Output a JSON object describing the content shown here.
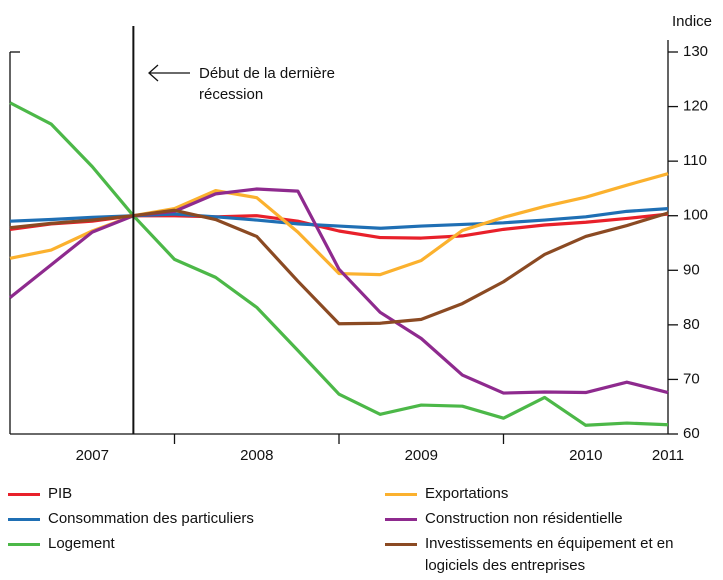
{
  "chart_data": {
    "type": "line",
    "unit_label": "Indice",
    "annotation": {
      "text": "Début de la dernière récession",
      "x": 2007.75
    },
    "x": [
      2007,
      2007.25,
      2007.5,
      2007.75,
      2008,
      2008.25,
      2008.5,
      2008.75,
      2009,
      2009.25,
      2009.5,
      2009.75,
      2010,
      2010.25,
      2010.5,
      2010.75,
      2011
    ],
    "xlim": [
      2007,
      2011
    ],
    "xticks": [
      {
        "value": 2007.5,
        "label": "2007"
      },
      {
        "value": 2008.5,
        "label": "2008"
      },
      {
        "value": 2009.5,
        "label": "2009"
      },
      {
        "value": 2010.5,
        "label": "2010"
      },
      {
        "value": 2011,
        "label": "2011"
      }
    ],
    "ylim": [
      60,
      130
    ],
    "yticks": [
      60,
      70,
      80,
      90,
      100,
      110,
      120,
      130
    ],
    "series": [
      {
        "name": "PIB",
        "color": "#e8202a",
        "values": [
          97.5,
          98.5,
          99,
          100,
          100,
          99.8,
          100,
          99,
          97.2,
          96,
          95.9,
          96.3,
          97.5,
          98.3,
          98.8,
          99.5,
          100.3
        ]
      },
      {
        "name": "Consommation des particuliers",
        "color": "#1f6fb4",
        "values": [
          99,
          99.3,
          99.7,
          100,
          100.3,
          99.8,
          99.2,
          98.5,
          98.1,
          97.7,
          98.1,
          98.4,
          98.7,
          99.2,
          99.8,
          100.8,
          101.3
        ]
      },
      {
        "name": "Logement",
        "color": "#4cb848",
        "values": [
          120.7,
          116.8,
          109,
          100,
          92,
          88.7,
          83.2,
          75.3,
          67.3,
          63.6,
          65.3,
          65.1,
          62.9,
          66.7,
          61.6,
          62,
          61.7
        ]
      },
      {
        "name": "Exportations",
        "color": "#fbb12e",
        "values": [
          92.2,
          93.7,
          97.2,
          100,
          101.3,
          104.6,
          103.3,
          97,
          89.4,
          89.2,
          91.8,
          97.3,
          99.7,
          101.7,
          103.4,
          105.6,
          107.7
        ]
      },
      {
        "name": "Construction non résidentielle",
        "color": "#8e2a8e",
        "values": [
          85,
          91,
          97,
          100,
          100.8,
          104,
          104.9,
          104.5,
          90.2,
          82.3,
          77.5,
          70.8,
          67.5,
          67.7,
          67.6,
          69.5,
          67.6
        ]
      },
      {
        "name": "Investissements en équipement et en logiciels des entreprises",
        "color": "#8b4a23",
        "values": [
          97.8,
          98.6,
          99.2,
          100,
          101,
          99.3,
          96.2,
          88,
          80.2,
          80.3,
          81,
          83.9,
          87.9,
          92.9,
          96.2,
          98.2,
          100.5
        ]
      }
    ]
  }
}
